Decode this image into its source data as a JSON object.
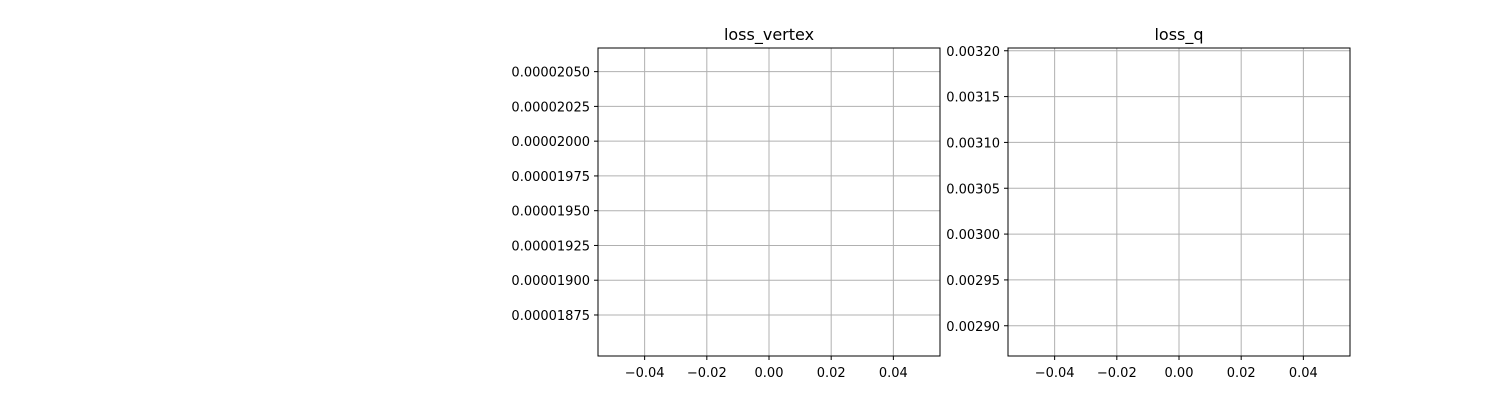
{
  "chart_data": [
    {
      "type": "line",
      "title": "loss_vertex",
      "xlabel": "",
      "ylabel": "",
      "grid": true,
      "xlim": [
        -0.055,
        0.055
      ],
      "ylim": [
        1.8455e-05,
        2.067e-05
      ],
      "xticks": [
        -0.04,
        -0.02,
        0.0,
        0.02,
        0.04
      ],
      "xtick_labels": [
        "−0.04",
        "−0.02",
        "0.00",
        "0.02",
        "0.04"
      ],
      "yticks": [
        1.875e-05,
        1.9e-05,
        1.925e-05,
        1.95e-05,
        1.975e-05,
        2e-05,
        2.025e-05,
        2.05e-05
      ],
      "ytick_labels": [
        "0.00001875",
        "0.00001900",
        "0.00001925",
        "0.00001950",
        "0.00001975",
        "0.00002000",
        "0.00002025",
        "0.00002050"
      ],
      "series": [
        {
          "values": []
        }
      ]
    },
    {
      "type": "line",
      "title": "loss_q",
      "xlabel": "",
      "ylabel": "",
      "grid": true,
      "xlim": [
        -0.055,
        0.055
      ],
      "ylim": [
        0.002867,
        0.003203
      ],
      "xticks": [
        -0.04,
        -0.02,
        0.0,
        0.02,
        0.04
      ],
      "xtick_labels": [
        "−0.04",
        "−0.02",
        "0.00",
        "0.02",
        "0.04"
      ],
      "yticks": [
        0.0029,
        0.00295,
        0.003,
        0.00305,
        0.0031,
        0.00315,
        0.0032
      ],
      "ytick_labels": [
        "0.00290",
        "0.00295",
        "0.00300",
        "0.00305",
        "0.00310",
        "0.00315",
        "0.00320"
      ],
      "series": [
        {
          "values": []
        }
      ]
    }
  ]
}
